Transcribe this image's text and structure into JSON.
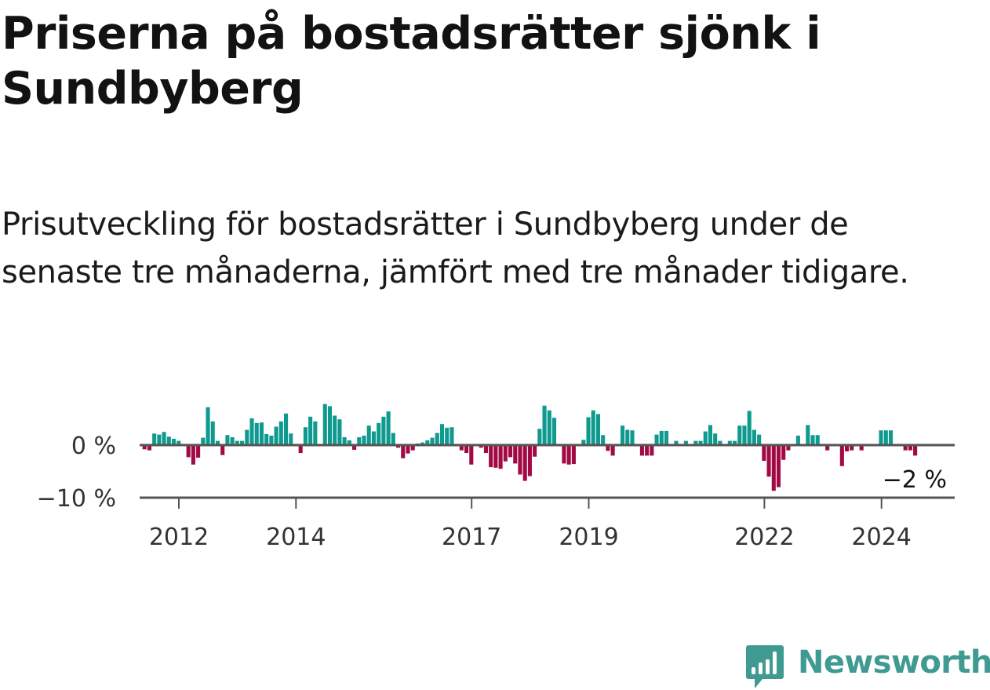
{
  "page": {
    "title": "Priserna på bostadsrätter sjönk i Sundbyberg",
    "subtitle": "Prisutveckling för bostadsrätter i Sundbyberg under de senaste tre månaderna, jämfört med tre månader tidigare.",
    "logo_text": "Newsworthy"
  },
  "colors": {
    "positive": "#0f9a8f",
    "negative": "#a10a45",
    "axis": "#555555",
    "brand": "#3f9a91"
  },
  "chart_data": {
    "type": "bar",
    "title": "Priserna på bostadsrätter sjönk i Sundbyberg",
    "subtitle": "Prisutveckling för bostadsrätter i Sundbyberg under de senaste tre månaderna, jämfört med tre månader tidigare.",
    "xlabel": "",
    "ylabel": "",
    "unit": "%",
    "ylim": [
      -10,
      10
    ],
    "yticks": [
      {
        "value": 0,
        "label": "0 %"
      },
      {
        "value": -10,
        "label": "−10 %"
      }
    ],
    "x_start": 2011.33,
    "x_end": 2025.25,
    "xticks": [
      {
        "value": 2012,
        "label": "2012"
      },
      {
        "value": 2014,
        "label": "2014"
      },
      {
        "value": 2017,
        "label": "2017"
      },
      {
        "value": 2019,
        "label": "2019"
      },
      {
        "value": 2022,
        "label": "2022"
      },
      {
        "value": 2024,
        "label": "2024"
      }
    ],
    "first_period": 2011.33,
    "period_step": 0.0833,
    "grid": false,
    "series": [
      {
        "name": "Prisutveckling",
        "values": [
          0,
          -0.8,
          -1,
          2.2,
          2,
          2.5,
          1.6,
          1.2,
          0.8,
          0,
          -2.3,
          -3.7,
          -2.4,
          1.4,
          7.2,
          4.5,
          0.8,
          -1.9,
          1.9,
          1.5,
          0.8,
          0.8,
          2.9,
          5.1,
          4.2,
          4.3,
          2.1,
          1.8,
          3.5,
          4.5,
          6,
          2.2,
          0,
          -1.5,
          3.4,
          5.4,
          4.5,
          0,
          7.8,
          7.4,
          5.6,
          4.9,
          1.5,
          0.9,
          -0.9,
          1.5,
          1.8,
          3.7,
          2.6,
          4.2,
          5.4,
          6.4,
          2.3,
          -0.5,
          -2.5,
          -1.6,
          -1,
          0.3,
          0.5,
          0.9,
          1.4,
          2.3,
          4,
          3.3,
          3.4,
          0,
          -1,
          -1.5,
          -3.7,
          0,
          -0.5,
          -1.5,
          -4.2,
          -4.3,
          -4.5,
          -3.1,
          -2.3,
          -3.5,
          -5.6,
          -6.8,
          -5.9,
          -2.2,
          3.1,
          7.5,
          6.6,
          5.2,
          0,
          -3.5,
          -3.7,
          -3.6,
          0,
          1,
          5.3,
          6.6,
          5.9,
          1.9,
          -1.1,
          -2,
          0,
          3.7,
          2.9,
          2.8,
          0,
          -2,
          -2,
          -2,
          2,
          2.7,
          2.7,
          0,
          0.8,
          0,
          0.8,
          0,
          0.8,
          0.8,
          2.6,
          3.8,
          2.2,
          0.8,
          0,
          0.8,
          0.8,
          3.7,
          3.7,
          6.5,
          2.9,
          2,
          -3,
          -6,
          -8.7,
          -8,
          -2.8,
          -1,
          0,
          1.8,
          0,
          3.8,
          1.9,
          1.9,
          0,
          -1,
          0,
          0,
          -4,
          -1.2,
          -1,
          0,
          -1,
          0,
          0,
          0,
          2.8,
          2.8,
          2.8,
          0,
          0,
          -1,
          -1,
          -2
        ]
      }
    ],
    "annotations": [
      {
        "text": "−2 %",
        "for": "last_value"
      }
    ]
  }
}
